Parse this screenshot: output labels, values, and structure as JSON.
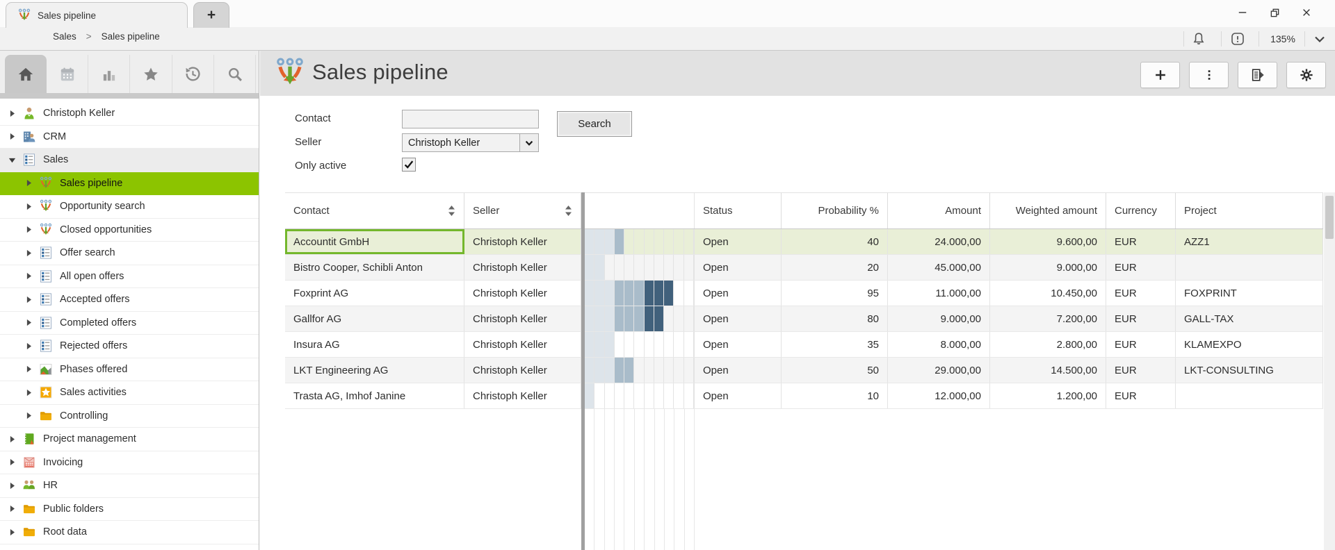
{
  "window": {
    "controls": [
      "minimize",
      "restore",
      "close"
    ]
  },
  "tab_bar": {
    "tabs": [
      {
        "label": "Sales pipeline",
        "icon": "funnel",
        "active": true
      }
    ],
    "new_tab_label": "+"
  },
  "nav_bar": {
    "breadcrumb": [
      "Sales",
      "Sales pipeline"
    ],
    "separator": ">",
    "zoom_level": "135%",
    "right_icons": [
      "bell",
      "alert-badge",
      "zoom-level",
      "chevron-down"
    ]
  },
  "sidebar": {
    "toolbar": [
      {
        "icon": "home",
        "active": true
      },
      {
        "icon": "calendar",
        "active": false
      },
      {
        "icon": "bar-chart",
        "active": false
      },
      {
        "icon": "star",
        "active": false
      },
      {
        "icon": "history",
        "active": false
      },
      {
        "icon": "search",
        "active": false
      }
    ],
    "tree": [
      {
        "label": "Christoph Keller",
        "icon": "user",
        "level": 0,
        "state": "collapsed"
      },
      {
        "label": "CRM",
        "icon": "crm-building",
        "level": 0,
        "state": "collapsed"
      },
      {
        "label": "Sales",
        "icon": "list",
        "level": 0,
        "state": "expanded",
        "highlighted": true
      },
      {
        "label": "Sales pipeline",
        "icon": "funnel",
        "level": 1,
        "state": "collapsed",
        "selected": true
      },
      {
        "label": "Opportunity search",
        "icon": "funnel",
        "level": 1,
        "state": "collapsed"
      },
      {
        "label": "Closed opportunities",
        "icon": "funnel",
        "level": 1,
        "state": "collapsed"
      },
      {
        "label": "Offer search",
        "icon": "list",
        "level": 1,
        "state": "collapsed"
      },
      {
        "label": "All open offers",
        "icon": "list",
        "level": 1,
        "state": "collapsed"
      },
      {
        "label": "Accepted offers",
        "icon": "list",
        "level": 1,
        "state": "collapsed"
      },
      {
        "label": "Completed offers",
        "icon": "list",
        "level": 1,
        "state": "collapsed"
      },
      {
        "label": "Rejected offers",
        "icon": "list",
        "level": 1,
        "state": "collapsed"
      },
      {
        "label": "Phases offered",
        "icon": "chart",
        "level": 1,
        "state": "collapsed"
      },
      {
        "label": "Sales activities",
        "icon": "star-tile",
        "level": 1,
        "state": "collapsed"
      },
      {
        "label": "Controlling",
        "icon": "folder",
        "level": 1,
        "state": "collapsed"
      },
      {
        "label": "Project management",
        "icon": "notebook",
        "level": 0,
        "state": "collapsed"
      },
      {
        "label": "Invoicing",
        "icon": "invoice",
        "level": 0,
        "state": "collapsed"
      },
      {
        "label": "HR",
        "icon": "people",
        "level": 0,
        "state": "collapsed"
      },
      {
        "label": "Public folders",
        "icon": "folder",
        "level": 0,
        "state": "collapsed"
      },
      {
        "label": "Root data",
        "icon": "folder",
        "level": 0,
        "state": "collapsed"
      }
    ]
  },
  "page": {
    "title": "Sales pipeline",
    "icon": "funnel",
    "actions": [
      {
        "name": "add",
        "icon": "plus"
      },
      {
        "name": "more",
        "icon": "kebab"
      },
      {
        "name": "report",
        "icon": "report"
      },
      {
        "name": "settings",
        "icon": "gear"
      }
    ]
  },
  "filter_form": {
    "contact_label": "Contact",
    "contact_value": "",
    "search_button_label": "Search",
    "seller_label": "Seller",
    "seller_value": "Christoph Keller",
    "only_active_label": "Only active",
    "only_active_checked": true
  },
  "table": {
    "columns": [
      {
        "label": "Contact",
        "sortable": true
      },
      {
        "label": "Seller",
        "sortable": true
      },
      {
        "label": "",
        "type": "funnel"
      },
      {
        "label": "Status"
      },
      {
        "label": "Probability %",
        "align": "right"
      },
      {
        "label": "Amount",
        "align": "right"
      },
      {
        "label": "Weighted amount",
        "align": "right"
      },
      {
        "label": "Currency"
      },
      {
        "label": "Project"
      }
    ],
    "rows": [
      {
        "contact": "Accountit GmbH",
        "seller": "Christoph Keller",
        "funnel": [
          1,
          1,
          1,
          2,
          0,
          0,
          0,
          0,
          0,
          0,
          0
        ],
        "status": "Open",
        "probability": "40",
        "amount": "24.000,00",
        "weighted_amount": "9.600,00",
        "currency": "EUR",
        "project": "AZZ1",
        "selected": true
      },
      {
        "contact": "Bistro Cooper, Schibli Anton",
        "seller": "Christoph Keller",
        "funnel": [
          1,
          1,
          0,
          0,
          0,
          0,
          0,
          0,
          0,
          0,
          0
        ],
        "status": "Open",
        "probability": "20",
        "amount": "45.000,00",
        "weighted_amount": "9.000,00",
        "currency": "EUR",
        "project": "",
        "selected": false
      },
      {
        "contact": "Foxprint AG",
        "seller": "Christoph Keller",
        "funnel": [
          1,
          1,
          1,
          2,
          2,
          2,
          3,
          3,
          3,
          0,
          0
        ],
        "status": "Open",
        "probability": "95",
        "amount": "11.000,00",
        "weighted_amount": "10.450,00",
        "currency": "EUR",
        "project": "FOXPRINT",
        "selected": false
      },
      {
        "contact": "Gallfor AG",
        "seller": "Christoph Keller",
        "funnel": [
          1,
          1,
          1,
          2,
          2,
          2,
          3,
          3,
          0,
          0,
          0
        ],
        "status": "Open",
        "probability": "80",
        "amount": "9.000,00",
        "weighted_amount": "7.200,00",
        "currency": "EUR",
        "project": "GALL-TAX",
        "selected": false
      },
      {
        "contact": "Insura AG",
        "seller": "Christoph Keller",
        "funnel": [
          1,
          1,
          1,
          0,
          0,
          0,
          0,
          0,
          0,
          0,
          0
        ],
        "status": "Open",
        "probability": "35",
        "amount": "8.000,00",
        "weighted_amount": "2.800,00",
        "currency": "EUR",
        "project": "KLAMEXPO",
        "selected": false
      },
      {
        "contact": "LKT Engineering AG",
        "seller": "Christoph Keller",
        "funnel": [
          1,
          1,
          1,
          2,
          2,
          0,
          0,
          0,
          0,
          0,
          0
        ],
        "status": "Open",
        "probability": "50",
        "amount": "29.000,00",
        "weighted_amount": "14.500,00",
        "currency": "EUR",
        "project": "LKT-CONSULTING",
        "selected": false
      },
      {
        "contact": "Trasta AG, Imhof Janine",
        "seller": "Christoph Keller",
        "funnel": [
          1,
          0,
          0,
          0,
          0,
          0,
          0,
          0,
          0,
          0,
          0
        ],
        "status": "Open",
        "probability": "10",
        "amount": "12.000,00",
        "weighted_amount": "1.200,00",
        "currency": "EUR",
        "project": "",
        "selected": false
      }
    ]
  },
  "colors": {
    "accent_green": "#8cc400",
    "selected_row_bg": "#e9efd7",
    "selected_cell_border": "#74b72c",
    "funnel_light": "#dde4ea",
    "funnel_medium": "#a9bcca",
    "funnel_dark": "#41617c"
  }
}
